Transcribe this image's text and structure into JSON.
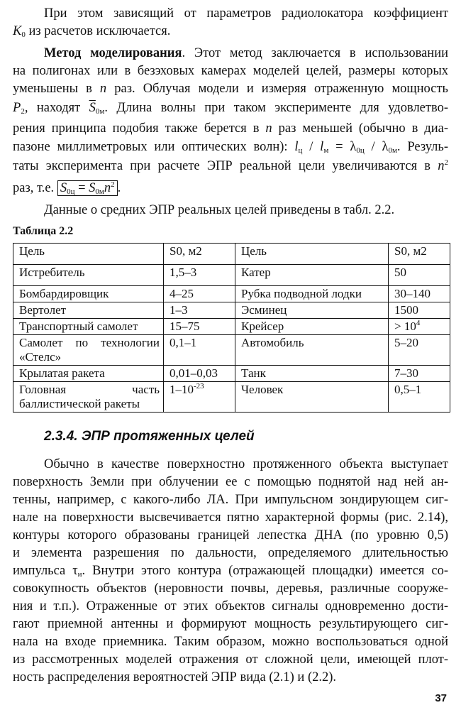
{
  "paragraph1": [
    "При этом зависящий от параметров радиолокатора коэффициент",
    "из расчетов исключается."
  ],
  "k0": "K",
  "paragraph2": {
    "lead": "Метод моделирования",
    "l1": ". Этот метод заключается в использовании",
    "l2": "на полигонах или в безэховых камерах моделей целей, размеры которых",
    "l3a": "уменьшены в ",
    "n": "n",
    "l3b": " раз. Облучая модели и измеряя отраженную мощность",
    "p2": "P",
    "l4a": ", находят ",
    "s0m": "S",
    "l4b": ". Длина волны при таком эксперименте для удовлетво-",
    "l5a": "рения принципа подобия также берется в ",
    "l5b": " раз меньшей (обычно в диа-",
    "l6a": "пазоне миллиметровых или оптических волн): ",
    "formula": "l_ц / l_м = λ_0ц / λ_0м",
    "l6b": ". Резуль-",
    "l7": "таты эксперимента при расчете ЭПР реальной цели увеличиваются в ",
    "l8": "раз, т.е. ",
    "boxed_formula": "S_0ц = S_0м n^2"
  },
  "paragraph3": "Данные о средних ЭПР реальных целей приведены в табл. 2.2.",
  "table": {
    "caption": "Таблица 2.2",
    "headers": [
      "Цель",
      "S0, м2",
      "Цель",
      "S0, м2"
    ],
    "rows": [
      [
        "Истребитель",
        "1,5–3",
        "Катер",
        "50"
      ],
      [
        "Бомбардировщик",
        "4–25",
        "Рубка подводной лодки",
        "30–140"
      ],
      [
        "Вертолет",
        "1–3",
        "Эсминец",
        "1500"
      ],
      [
        "Транспортный самолет",
        "15–75",
        "Крейсер",
        "> 10^4"
      ],
      [
        "Самолет по технологии «Стелс»",
        "0,1–1",
        "Автомобиль",
        "5–20"
      ],
      [
        "Крылатая ракета",
        "0,01–0,03",
        "Танк",
        "7–30"
      ],
      [
        "Головная часть баллистической ракеты",
        "1–10^-23",
        "Человек",
        "0,5–1"
      ]
    ]
  },
  "section_heading": "2.3.4. ЭПР протяженных целей",
  "paragraph4": [
    "Обычно в качестве поверхностно протяженного объекта выступает",
    "поверхность Земли при облучении ее с помощью поднятой над ней ан-",
    "тенны, например, с какого-либо ЛА. При импульсном зондирующем сиг-",
    "нале на поверхности высвечивается пятно характерной формы (рис. 2.14),",
    "контуры которого образованы границей лепестка ДНА (по уровню 0,5)",
    "и элемента разрешения по дальности, определяемого длительностью",
    "импульса τ",
    "совокупность объектов (неровности почвы, деревья, различные сооруже-",
    "ния и т.п.). Отраженные от этих объектов сигналы одновременно дости-",
    "гают приемной антенны и формируют мощность результирующего сиг-",
    "нала на входе приемника. Таким образом, можно воспользоваться одной",
    "из рассмотренных моделей отражения от сложной цели, имеющей плот-",
    "ность распределения вероятностей ЭПР вида (2.1) и (2.2)."
  ],
  "p4_line7_rest": ". Внутри этого контура (отражающей площадки) имеется со-",
  "page_number": "37"
}
